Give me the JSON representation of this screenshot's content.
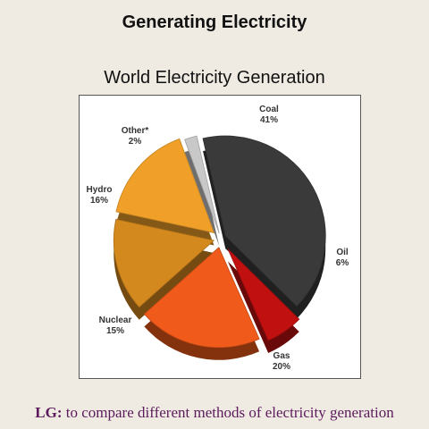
{
  "slide": {
    "title": "Generating Electricity",
    "footer_prefix": "LG:",
    "footer_text": " to compare different methods of electricity generation"
  },
  "chart_data": {
    "type": "pie",
    "title": "World Electricity Generation",
    "slices": [
      {
        "label": "Coal",
        "value": 41,
        "value_text": "41%",
        "color": "#3a3a3a"
      },
      {
        "label": "Oil",
        "value": 6,
        "value_text": "6%",
        "color": "#c01010"
      },
      {
        "label": "Gas",
        "value": 20,
        "value_text": "20%",
        "color": "#f05a1a"
      },
      {
        "label": "Nuclear",
        "value": 15,
        "value_text": "15%",
        "color": "#d4891f"
      },
      {
        "label": "Hydro",
        "value": 16,
        "value_text": "16%",
        "color": "#f0a028"
      },
      {
        "label": "Other*",
        "value": 2,
        "value_text": "2%",
        "color": "#c8c8c8"
      }
    ]
  }
}
